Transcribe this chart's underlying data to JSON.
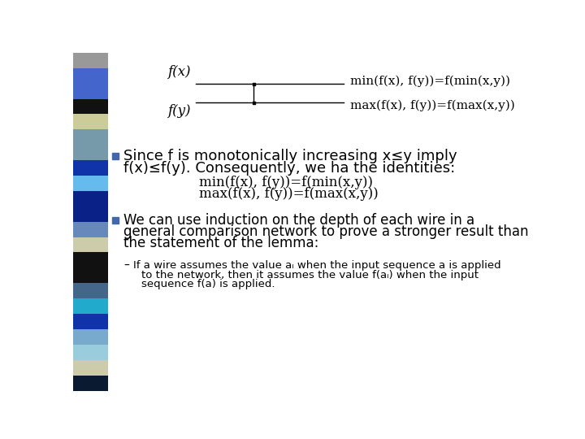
{
  "bg_color": "#ffffff",
  "sidebar_colors": [
    "#aaaaaa",
    "#5577cc",
    "#5577cc",
    "#111111",
    "#cccc99",
    "#88aabb",
    "#88aabb",
    "#1144aa",
    "#88ccee",
    "#1133aa",
    "#1133aa",
    "#88aacc",
    "#ccccaa",
    "#111111",
    "#111111",
    "#557799",
    "#33aacc",
    "#1133aa",
    "#88bbdd",
    "#aaddee",
    "#ccccaa",
    "#1a1a2a"
  ],
  "title_fx": "f(x)",
  "title_fy": "f(y)",
  "label_min": "min(f(x), f(y))=f(min(x,y))",
  "label_max": "max(f(x), f(y))=f(max(x,y))",
  "bullet1_line1": "Since f is monotonically increasing x≤y imply",
  "bullet1_line2": "f(x)≤f(y). Consequently, we ha the identities:",
  "indent_min": "min(f(x), f(y))=f(min(x,y))",
  "indent_max": "max(f(x), f(y))=f(max(x,y))",
  "bullet2_line1": "We can use induction on the depth of each wire in a",
  "bullet2_line2": "general comparison network to prove a stronger result than",
  "bullet2_line3": "the statement of the lemma:",
  "sub_line1": "If a wire assumes the value aᵢ when the input sequence a is applied",
  "sub_line2": "to the network, then it assumes the value f(aᵢ) when the input",
  "sub_line3": "sequence f(a) is applied.",
  "bullet_color": "#4466aa"
}
